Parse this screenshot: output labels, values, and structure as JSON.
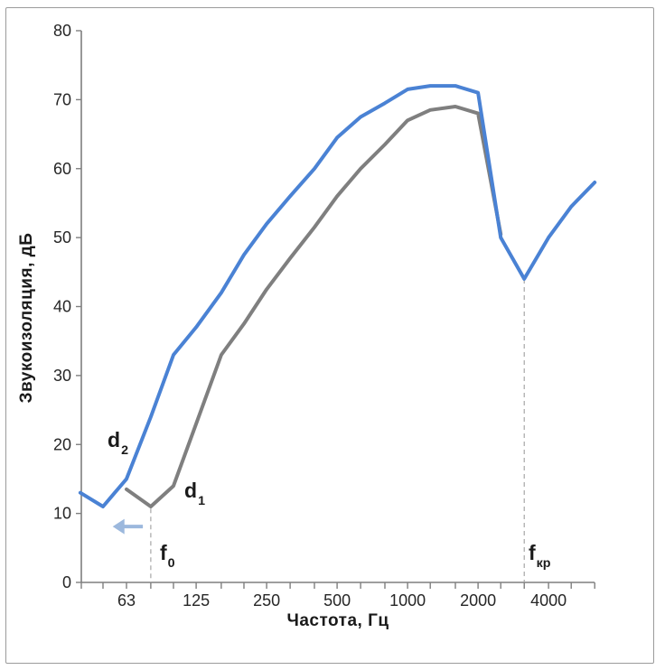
{
  "axes": {
    "x_title": "Частота, Гц",
    "y_title": "Звукоизоляция, дБ"
  },
  "labels": {
    "d2": {
      "base": "d",
      "sub": "2"
    },
    "d1": {
      "base": "d",
      "sub": "1"
    },
    "f0": {
      "base": "f",
      "sub": "0"
    },
    "fkr": {
      "base": "f",
      "sub": "кр"
    }
  },
  "chart_data": {
    "type": "line",
    "title": "",
    "xlabel": "Частота, Гц",
    "ylabel": "Звукоизоляция, дБ",
    "x_scale": "log2",
    "xlim_hz": [
      40,
      6800
    ],
    "ylim": [
      0,
      80
    ],
    "grid": false,
    "legend_position": "none",
    "y_ticks": [
      0,
      10,
      20,
      30,
      40,
      50,
      60,
      70,
      80
    ],
    "x_tick_labels": [
      63,
      125,
      250,
      500,
      1000,
      2000,
      4000
    ],
    "x_minor_ticks_hz": [
      50,
      63,
      80,
      100,
      125,
      160,
      200,
      250,
      315,
      400,
      500,
      630,
      800,
      1000,
      1250,
      1600,
      2000,
      2500,
      3150,
      4000,
      5000,
      6300
    ],
    "colors": {
      "d2_line": "#4a82d4",
      "d1_line": "#7f7f7f",
      "axis": "#7f7f7f",
      "dashed_line": "#a6a6a6",
      "tick_text": "#262626",
      "arrow": "#9cb8dd"
    },
    "series": [
      {
        "name": "d1",
        "color": "#7f7f7f",
        "points_hz_db": [
          [
            63,
            13.5
          ],
          [
            80,
            11
          ],
          [
            100,
            14
          ],
          [
            125,
            23
          ],
          [
            160,
            33
          ],
          [
            200,
            37.5
          ],
          [
            250,
            42.5
          ],
          [
            315,
            47
          ],
          [
            400,
            51.5
          ],
          [
            500,
            56
          ],
          [
            630,
            60
          ],
          [
            800,
            63.5
          ],
          [
            1000,
            67
          ],
          [
            1250,
            68.5
          ],
          [
            1600,
            69
          ],
          [
            2000,
            68
          ],
          [
            2500,
            50.5
          ]
        ]
      },
      {
        "name": "d2",
        "color": "#4a82d4",
        "points_hz_db": [
          [
            40,
            13
          ],
          [
            50,
            11
          ],
          [
            63,
            15
          ],
          [
            80,
            24
          ],
          [
            100,
            33
          ],
          [
            125,
            37
          ],
          [
            160,
            42
          ],
          [
            200,
            47.5
          ],
          [
            250,
            52
          ],
          [
            315,
            56
          ],
          [
            400,
            60
          ],
          [
            500,
            64.5
          ],
          [
            630,
            67.5
          ],
          [
            800,
            69.5
          ],
          [
            1000,
            71.5
          ],
          [
            1250,
            72
          ],
          [
            1600,
            72
          ],
          [
            2000,
            71
          ],
          [
            2500,
            50
          ],
          [
            3150,
            44
          ],
          [
            4000,
            50
          ],
          [
            5000,
            54.5
          ],
          [
            6300,
            58
          ]
        ]
      }
    ],
    "annotations": {
      "f0_dashed_line": {
        "hz": 80,
        "top_db": 10.7
      },
      "fkr_dashed_line": {
        "hz": 3150,
        "top_db": 44
      },
      "shift_arrow": {
        "y_db": 8.1,
        "from_hz": 74,
        "to_hz": 55,
        "direction": "left",
        "color": "#9cb8dd"
      }
    }
  }
}
